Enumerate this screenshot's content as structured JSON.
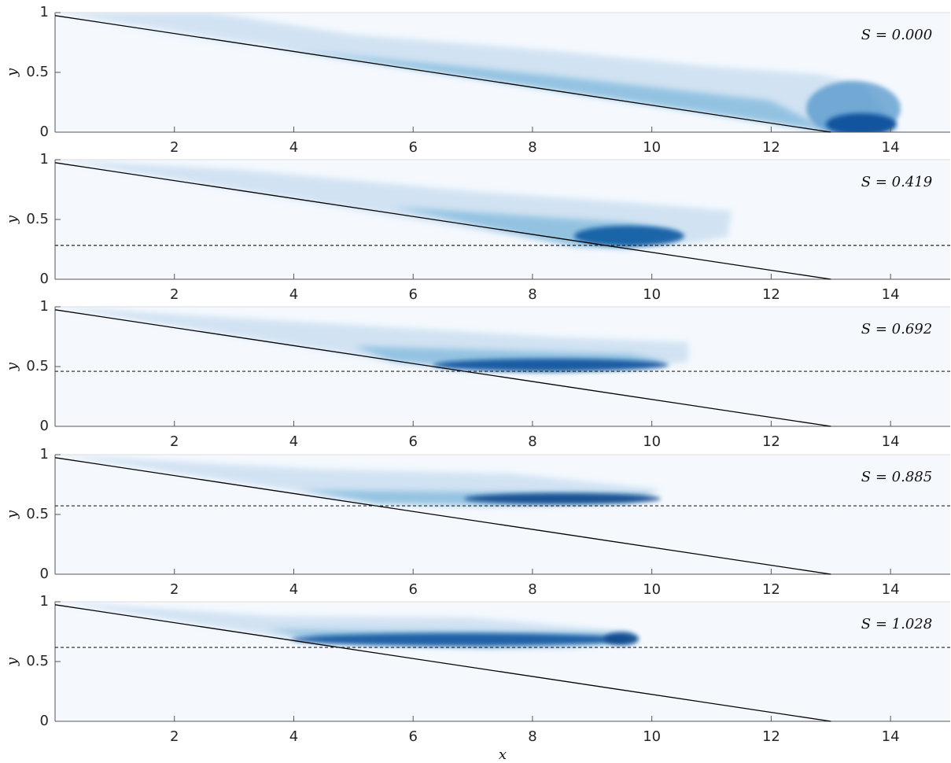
{
  "chart_data": [
    {
      "type": "field",
      "annotation": "S = 0.000",
      "ylabel": "y",
      "xlim": [
        0,
        15
      ],
      "ylim": [
        0,
        1
      ],
      "xticks": [
        2,
        4,
        6,
        8,
        10,
        12,
        14
      ],
      "yticks": [
        0,
        0.5,
        1
      ],
      "slope": {
        "x": [
          0,
          13
        ],
        "y": [
          0.975,
          0
        ]
      }
    },
    {
      "type": "field",
      "annotation": "S = 0.419",
      "ylabel": "y",
      "xlim": [
        0,
        15
      ],
      "ylim": [
        0,
        1
      ],
      "xticks": [
        2,
        4,
        6,
        8,
        10,
        12,
        14
      ],
      "yticks": [
        0,
        0.5,
        1
      ],
      "slope": {
        "x": [
          0,
          13
        ],
        "y": [
          0.975,
          0
        ]
      },
      "level": 0.283
    },
    {
      "type": "field",
      "annotation": "S = 0.692",
      "ylabel": "y",
      "xlim": [
        0,
        15
      ],
      "ylim": [
        0,
        1
      ],
      "xticks": [
        2,
        4,
        6,
        8,
        10,
        12,
        14
      ],
      "yticks": [
        0,
        0.5,
        1
      ],
      "slope": {
        "x": [
          0,
          13
        ],
        "y": [
          0.975,
          0
        ]
      },
      "level": 0.46
    },
    {
      "type": "field",
      "annotation": "S = 0.885",
      "ylabel": "y",
      "xlim": [
        0,
        15
      ],
      "ylim": [
        0,
        1
      ],
      "xticks": [
        2,
        4,
        6,
        8,
        10,
        12,
        14
      ],
      "yticks": [
        0,
        0.5,
        1
      ],
      "slope": {
        "x": [
          0,
          13
        ],
        "y": [
          0.975,
          0
        ]
      },
      "level": 0.572
    },
    {
      "type": "field",
      "annotation": "S = 1.028",
      "ylabel": "y",
      "xlabel": "x",
      "xlim": [
        0,
        15
      ],
      "ylim": [
        0,
        1
      ],
      "xticks": [
        2,
        4,
        6,
        8,
        10,
        12,
        14
      ],
      "yticks": [
        0,
        0.5,
        1
      ],
      "slope": {
        "x": [
          0,
          13
        ],
        "y": [
          0.975,
          0
        ]
      },
      "level": 0.618
    }
  ]
}
